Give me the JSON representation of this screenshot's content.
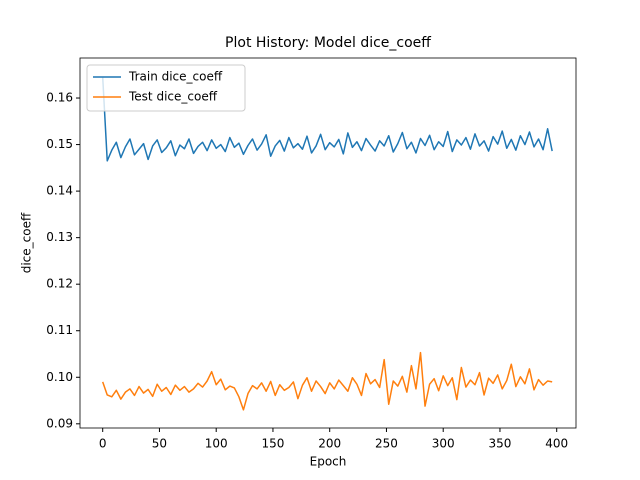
{
  "chart_data": {
    "type": "line",
    "title": "Plot History: Model dice_coeff",
    "x_label": "Epoch",
    "y_label": "dice_coeff",
    "x": [
      0,
      4,
      8,
      12,
      16,
      20,
      24,
      28,
      32,
      36,
      40,
      44,
      48,
      52,
      56,
      60,
      64,
      68,
      72,
      76,
      80,
      84,
      88,
      92,
      96,
      100,
      104,
      108,
      112,
      116,
      120,
      124,
      128,
      132,
      136,
      140,
      144,
      148,
      152,
      156,
      160,
      164,
      168,
      172,
      176,
      180,
      184,
      188,
      192,
      196,
      200,
      204,
      208,
      212,
      216,
      220,
      224,
      228,
      232,
      236,
      240,
      244,
      248,
      252,
      256,
      260,
      264,
      268,
      272,
      276,
      280,
      284,
      288,
      292,
      296,
      300,
      304,
      308,
      312,
      316,
      320,
      324,
      328,
      332,
      336,
      340,
      344,
      348,
      352,
      356,
      360,
      364,
      368,
      372,
      376,
      380,
      384,
      388,
      392,
      396
    ],
    "series": [
      {
        "name": "Train dice_coeff",
        "color": "#1f77b4",
        "values": [
          0.1645,
          0.1465,
          0.1488,
          0.1505,
          0.1472,
          0.1495,
          0.1512,
          0.1478,
          0.149,
          0.1502,
          0.1468,
          0.1497,
          0.151,
          0.1483,
          0.1493,
          0.1508,
          0.1476,
          0.1499,
          0.1491,
          0.1512,
          0.1481,
          0.1496,
          0.1505,
          0.1487,
          0.151,
          0.1492,
          0.15,
          0.1485,
          0.1515,
          0.1494,
          0.1503,
          0.1479,
          0.1498,
          0.1512,
          0.1488,
          0.1501,
          0.1521,
          0.1475,
          0.1497,
          0.1509,
          0.1486,
          0.1515,
          0.1493,
          0.1502,
          0.149,
          0.1518,
          0.1482,
          0.1497,
          0.1522,
          0.1489,
          0.1504,
          0.1495,
          0.1511,
          0.148,
          0.1525,
          0.1494,
          0.1506,
          0.1487,
          0.1513,
          0.1499,
          0.1486,
          0.1508,
          0.1497,
          0.1519,
          0.1484,
          0.1502,
          0.1526,
          0.1491,
          0.1505,
          0.1482,
          0.1513,
          0.1498,
          0.152,
          0.1489,
          0.1506,
          0.1496,
          0.1528,
          0.1485,
          0.151,
          0.1499,
          0.1515,
          0.149,
          0.1523,
          0.1497,
          0.1508,
          0.1486,
          0.1517,
          0.1501,
          0.1529,
          0.1492,
          0.1511,
          0.1488,
          0.1519,
          0.15,
          0.1527,
          0.1495,
          0.1512,
          0.1489,
          0.1534,
          0.1486
        ]
      },
      {
        "name": "Test dice_coeff",
        "color": "#ff7f0e",
        "values": [
          0.099,
          0.0962,
          0.0958,
          0.0972,
          0.0953,
          0.0968,
          0.0975,
          0.0961,
          0.098,
          0.0966,
          0.0974,
          0.0959,
          0.0985,
          0.097,
          0.0978,
          0.0963,
          0.0983,
          0.0972,
          0.098,
          0.0968,
          0.0975,
          0.0987,
          0.0979,
          0.0992,
          0.1012,
          0.0984,
          0.0996,
          0.0973,
          0.0981,
          0.0977,
          0.0958,
          0.093,
          0.0965,
          0.0982,
          0.0975,
          0.0988,
          0.097,
          0.0991,
          0.0961,
          0.0984,
          0.0972,
          0.0978,
          0.099,
          0.0954,
          0.0983,
          0.0999,
          0.097,
          0.0992,
          0.098,
          0.0965,
          0.0988,
          0.0975,
          0.0994,
          0.0982,
          0.097,
          0.0999,
          0.0985,
          0.0961,
          0.1008,
          0.0986,
          0.0995,
          0.0978,
          0.1038,
          0.0942,
          0.0992,
          0.0981,
          0.1002,
          0.0968,
          0.1025,
          0.0975,
          0.1053,
          0.0938,
          0.0985,
          0.0997,
          0.0971,
          0.1003,
          0.0982,
          0.0999,
          0.0952,
          0.1021,
          0.0979,
          0.0994,
          0.0984,
          0.101,
          0.0962,
          0.0998,
          0.0987,
          0.1005,
          0.0975,
          0.0993,
          0.1028,
          0.098,
          0.1001,
          0.0986,
          0.1018,
          0.0973,
          0.0995,
          0.0983,
          0.0992,
          0.099
        ]
      }
    ],
    "xlim": [
      -20,
      417
    ],
    "ylim": [
      0.0891,
      0.1686
    ],
    "xticks": [
      0,
      50,
      100,
      150,
      200,
      250,
      300,
      350,
      400
    ],
    "yticks": [
      0.09,
      {
        "value": 0.1,
        "label": "0.10"
      },
      0.11,
      0.12,
      0.13,
      0.14,
      0.15,
      0.16
    ],
    "legend": "upper left",
    "grid": false
  }
}
